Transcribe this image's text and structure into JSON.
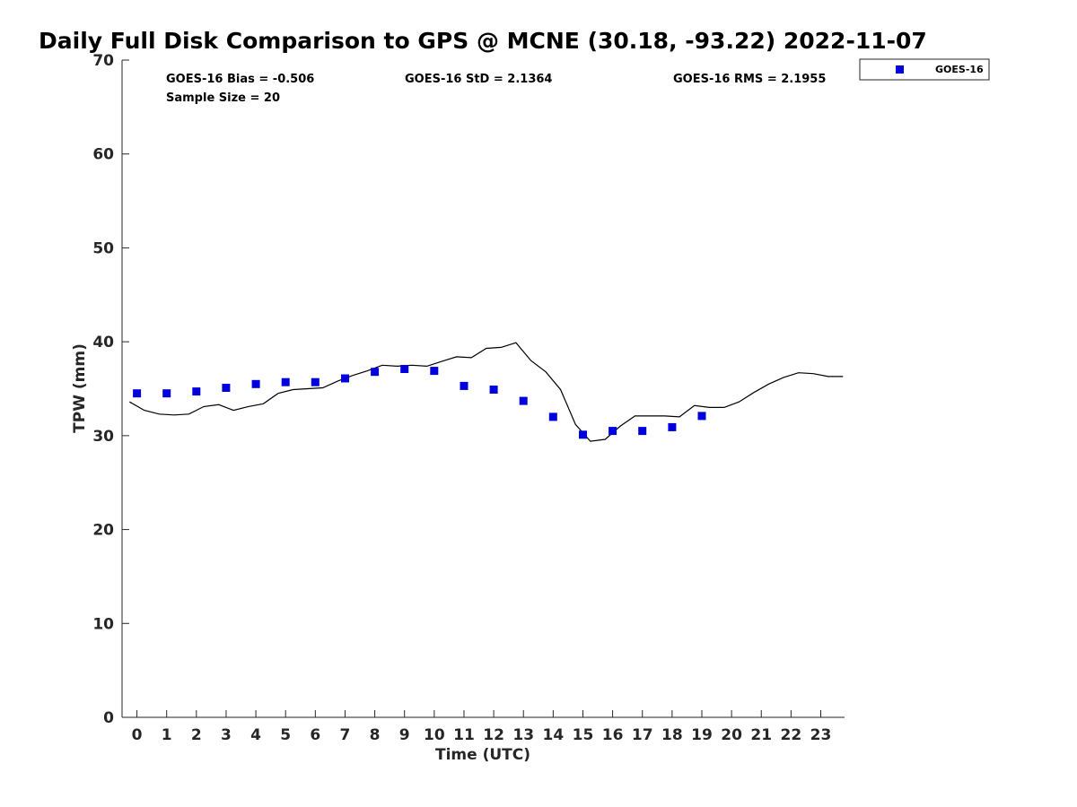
{
  "chart_data": {
    "type": "scatter",
    "title": "Daily Full Disk Comparison to GPS @ MCNE (30.18, -93.22) 2022-11-07",
    "xlabel": "Time (UTC)",
    "ylabel": "TPW (mm)",
    "xlim": [
      -0.5,
      23.8
    ],
    "ylim": [
      0,
      70
    ],
    "x_ticks": [
      "0",
      "1",
      "2",
      "3",
      "4",
      "5",
      "6",
      "7",
      "8",
      "9",
      "10",
      "11",
      "12",
      "13",
      "14",
      "15",
      "16",
      "17",
      "18",
      "19",
      "20",
      "21",
      "22",
      "23"
    ],
    "y_ticks": [
      "0",
      "10",
      "20",
      "30",
      "40",
      "50",
      "60",
      "70"
    ],
    "grid": false,
    "legend_position": "top-right-outside",
    "stats": {
      "bias": "GOES-16 Bias = -0.506",
      "std": "GOES-16 StD = 2.1364",
      "rms": "GOES-16 RMS = 2.1955",
      "sample": "Sample Size = 20"
    },
    "series": [
      {
        "name": "GOES-16",
        "kind": "marker",
        "color": "#0000dd",
        "x": [
          0,
          1,
          2,
          3,
          4,
          5,
          6,
          7,
          8,
          9,
          10,
          11,
          12,
          13,
          14,
          15,
          16,
          17,
          18,
          19
        ],
        "y": [
          34.5,
          34.5,
          34.7,
          35.1,
          35.5,
          35.7,
          35.7,
          36.1,
          36.8,
          37.1,
          36.9,
          35.3,
          34.9,
          33.7,
          32.0,
          30.1,
          30.5,
          30.5,
          30.9,
          32.1
        ]
      },
      {
        "kind": "line",
        "color": "#000000",
        "x": [
          -0.25,
          0.25,
          0.75,
          1.25,
          1.75,
          2.25,
          2.75,
          3.25,
          3.75,
          4.25,
          4.75,
          5.25,
          5.75,
          6.25,
          6.75,
          7.25,
          7.75,
          8.25,
          8.75,
          9.25,
          9.75,
          10.25,
          10.75,
          11.25,
          11.75,
          12.25,
          12.75,
          13.25,
          13.75,
          14.25,
          14.75,
          15.25,
          15.75,
          16.25,
          16.75,
          17.25,
          17.75,
          18.25,
          18.75,
          19.25,
          19.75,
          20.25,
          20.75,
          21.25,
          21.75,
          22.25,
          22.75,
          23.25,
          23.75
        ],
        "y": [
          33.6,
          32.7,
          32.3,
          32.2,
          32.3,
          33.1,
          33.3,
          32.7,
          33.1,
          33.4,
          34.5,
          34.9,
          35.0,
          35.1,
          35.8,
          36.4,
          36.9,
          37.5,
          37.4,
          37.5,
          37.4,
          37.9,
          38.4,
          38.3,
          39.3,
          39.4,
          39.9,
          38.0,
          36.8,
          34.9,
          31.2,
          29.4,
          29.6,
          31.0,
          32.1,
          32.1,
          32.1,
          32.0,
          33.2,
          33.0,
          33.0,
          33.6,
          34.6,
          35.5,
          36.2,
          36.7,
          36.6,
          36.3,
          36.3
        ]
      }
    ]
  }
}
